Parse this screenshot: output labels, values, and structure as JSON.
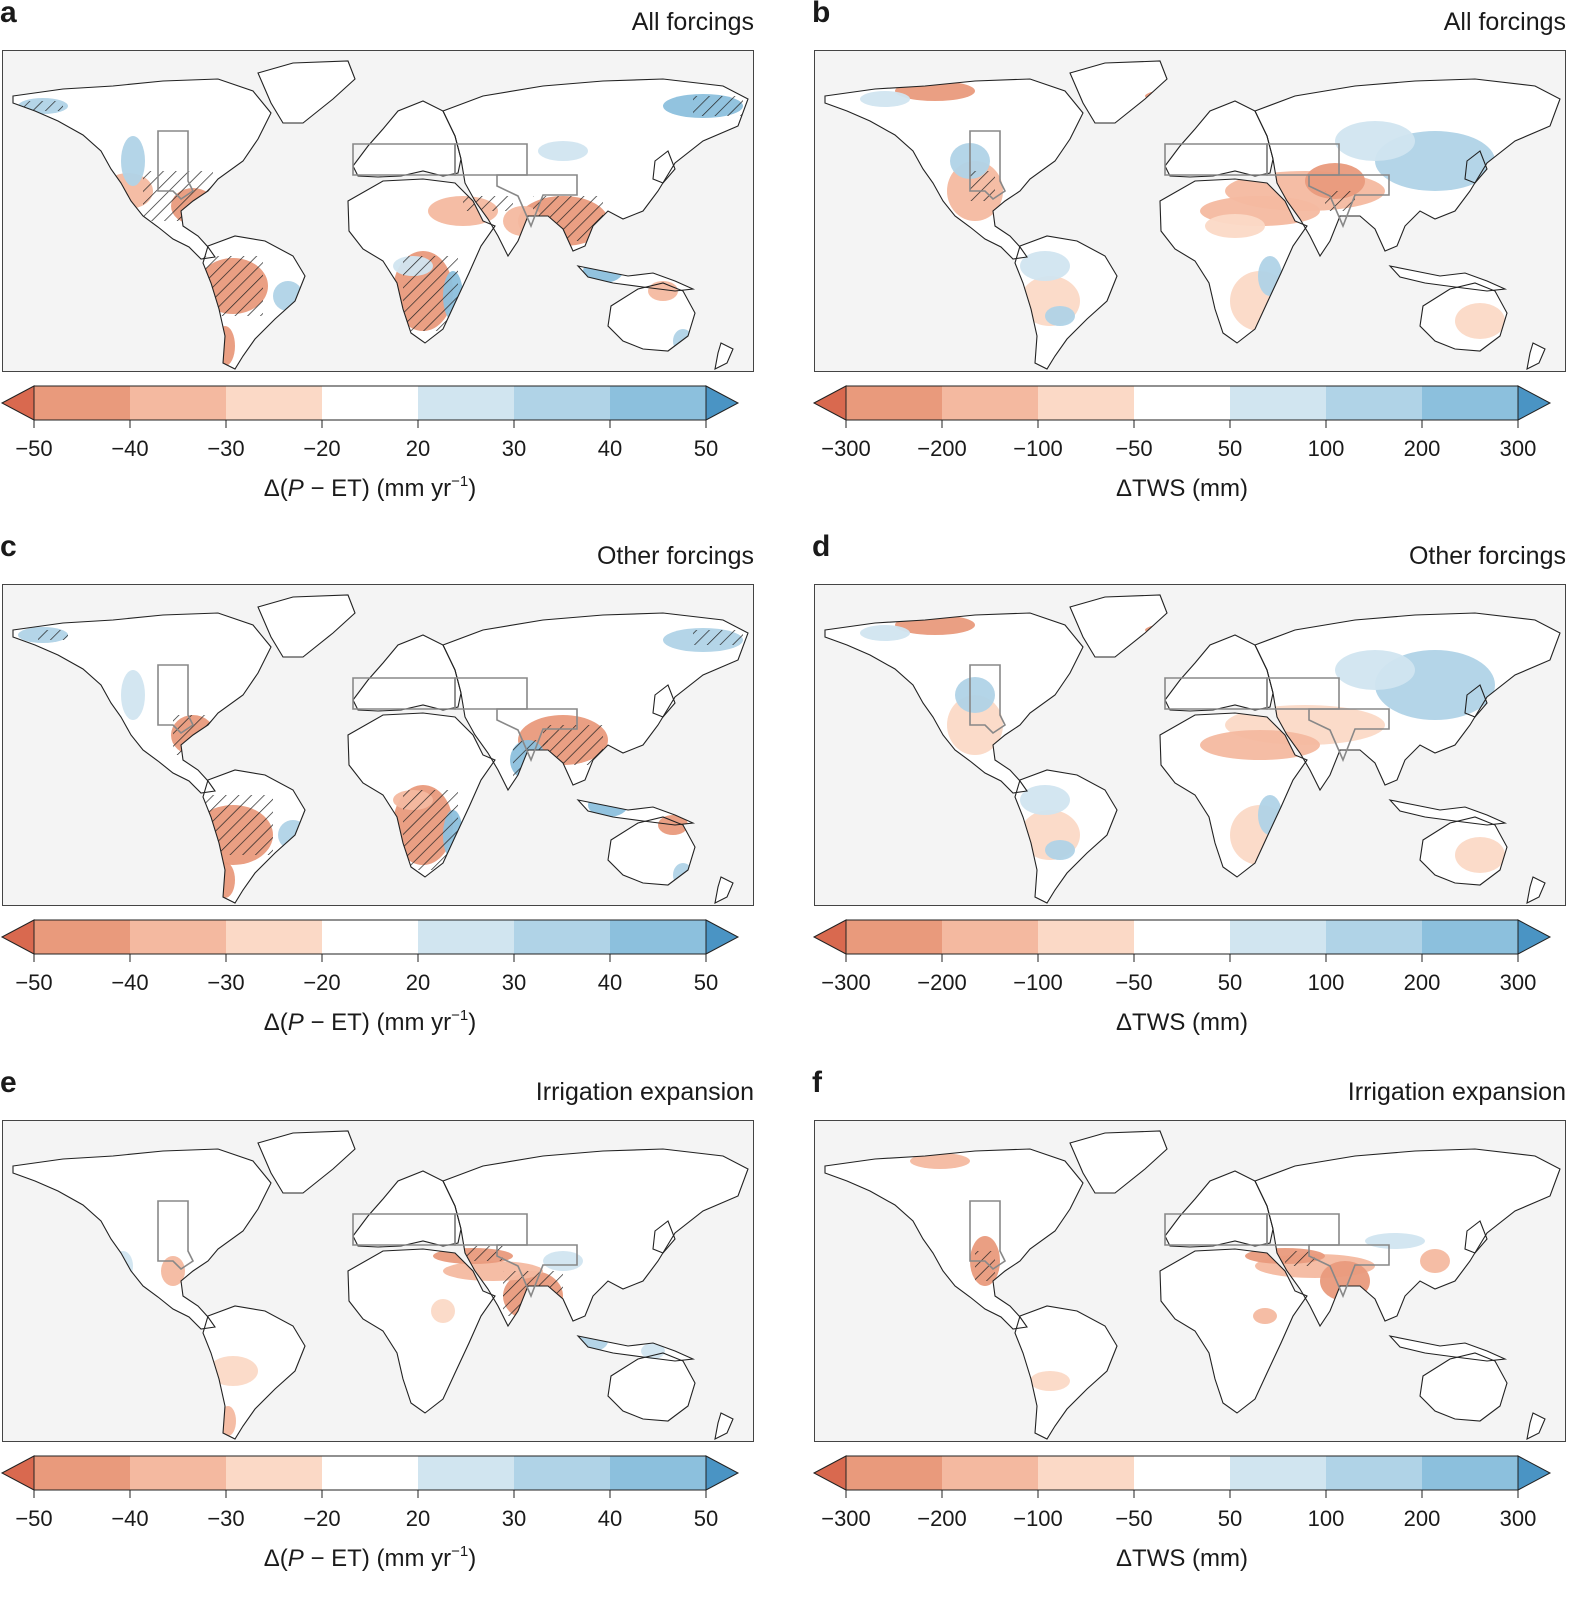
{
  "panels": [
    {
      "id": "a",
      "letter": "a",
      "title": "All forcings",
      "scale": "pet"
    },
    {
      "id": "b",
      "letter": "b",
      "title": "All forcings",
      "scale": "tws"
    },
    {
      "id": "c",
      "letter": "c",
      "title": "Other forcings",
      "scale": "pet"
    },
    {
      "id": "d",
      "letter": "d",
      "title": "Other forcings",
      "scale": "tws"
    },
    {
      "id": "e",
      "letter": "e",
      "title": "Irrigation expansion",
      "scale": "pet"
    },
    {
      "id": "f",
      "letter": "f",
      "title": "Irrigation expansion",
      "scale": "tws"
    }
  ],
  "colorbars": {
    "pet": {
      "ticks": [
        "−50",
        "−40",
        "−30",
        "−20",
        "20",
        "30",
        "40",
        "50"
      ],
      "label_prefix": "Δ(",
      "label_var": "P",
      "label_mid": " − ET) (mm yr",
      "label_sup": "−1",
      "label_suffix": ")"
    },
    "tws": {
      "ticks": [
        "−300",
        "−200",
        "−100",
        "−50",
        "50",
        "100",
        "200",
        "300"
      ],
      "label_text": "ΔTWS (mm)"
    }
  },
  "colors": {
    "ext_low": "#d9694f",
    "red3": "#e99a7c",
    "red2": "#f4b9a0",
    "red1": "#fbd9c6",
    "neutral": "#ffffff",
    "blue1": "#d1e5f0",
    "blue2": "#b0d3e7",
    "blue3": "#8cc0dd",
    "ext_high": "#4a94c4",
    "ocean": "#f4f4f4",
    "coast": "#222222",
    "hatch": "#222222"
  }
}
